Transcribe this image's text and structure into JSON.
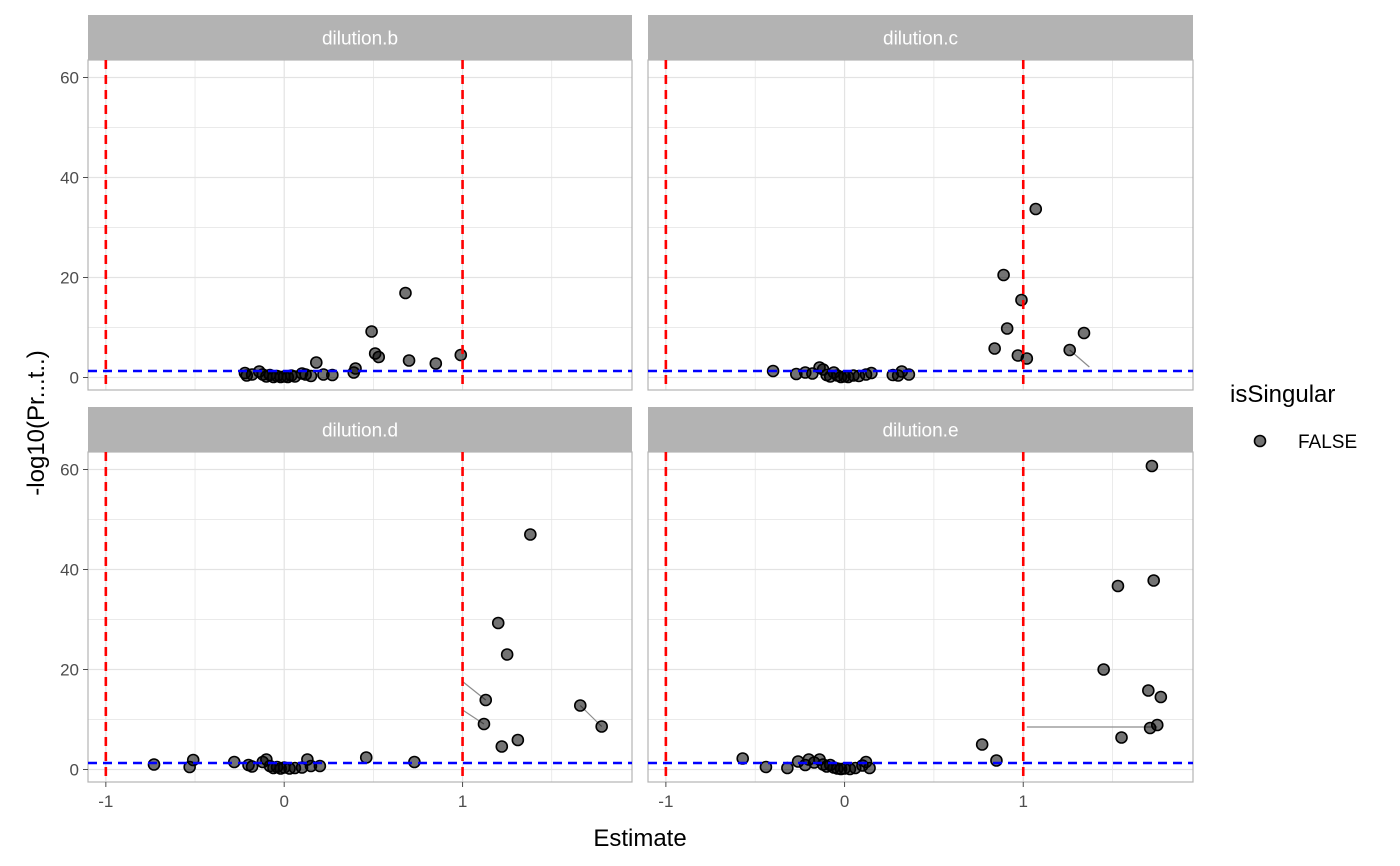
{
  "chart_data": {
    "type": "scatter",
    "xlabel": "Estimate",
    "ylabel": "-log10(Pr...t..)",
    "xlim": [
      -1.1,
      1.95
    ],
    "ylim": [
      -2.5,
      63.5
    ],
    "x_ticks": [
      -1,
      0,
      1
    ],
    "y_ticks": [
      0,
      20,
      40,
      60
    ],
    "grid": true,
    "vlines": [
      -1,
      1
    ],
    "hline": 1.3,
    "colors": {
      "point": "#000000",
      "vline": "#ff0000",
      "hline": "#0000ff",
      "strip": "#b3b3b3",
      "grid": "#e3e3e3",
      "connector": "#8c8c8c"
    },
    "legend": {
      "title": "isSingular",
      "entries": [
        "FALSE"
      ],
      "position": "right"
    },
    "panels": [
      {
        "title": "dilution.b",
        "points": [
          [
            -0.22,
            0.9
          ],
          [
            -0.21,
            0.4
          ],
          [
            -0.18,
            0.6
          ],
          [
            -0.14,
            1.2
          ],
          [
            -0.12,
            0.6
          ],
          [
            -0.1,
            0.2
          ],
          [
            -0.08,
            0.5
          ],
          [
            -0.06,
            0.1
          ],
          [
            -0.04,
            0.3
          ],
          [
            -0.02,
            0.1
          ],
          [
            0.0,
            0.2
          ],
          [
            0.02,
            0.1
          ],
          [
            0.04,
            0.4
          ],
          [
            0.06,
            0.2
          ],
          [
            0.1,
            0.8
          ],
          [
            0.12,
            0.6
          ],
          [
            0.15,
            0.3
          ],
          [
            0.18,
            3.0
          ],
          [
            0.22,
            0.6
          ],
          [
            0.27,
            0.5
          ],
          [
            0.39,
            1.0
          ],
          [
            0.4,
            1.8
          ],
          [
            0.49,
            9.2
          ],
          [
            0.51,
            4.8
          ],
          [
            0.53,
            4.1
          ],
          [
            0.68,
            16.9
          ],
          [
            0.7,
            3.4
          ],
          [
            0.85,
            2.8
          ],
          [
            0.99,
            4.5
          ]
        ],
        "connectors": []
      },
      {
        "title": "dilution.c",
        "points": [
          [
            -0.4,
            1.3
          ],
          [
            -0.27,
            0.7
          ],
          [
            -0.22,
            1.0
          ],
          [
            -0.18,
            0.8
          ],
          [
            -0.14,
            2.0
          ],
          [
            -0.12,
            1.6
          ],
          [
            -0.1,
            0.5
          ],
          [
            -0.08,
            0.2
          ],
          [
            -0.06,
            1.0
          ],
          [
            -0.04,
            0.4
          ],
          [
            -0.02,
            0.1
          ],
          [
            0.0,
            0.2
          ],
          [
            0.02,
            0.1
          ],
          [
            0.05,
            0.4
          ],
          [
            0.08,
            0.3
          ],
          [
            0.12,
            0.6
          ],
          [
            0.15,
            0.9
          ],
          [
            0.27,
            0.5
          ],
          [
            0.3,
            0.4
          ],
          [
            0.32,
            1.2
          ],
          [
            0.36,
            0.6
          ],
          [
            0.84,
            5.8
          ],
          [
            0.89,
            20.5
          ],
          [
            0.91,
            9.8
          ],
          [
            0.97,
            4.4
          ],
          [
            0.99,
            15.5
          ],
          [
            1.02,
            3.8
          ],
          [
            1.07,
            33.7
          ],
          [
            1.26,
            5.5
          ],
          [
            1.34,
            8.9
          ]
        ],
        "connectors": [
          [
            1.26,
            5.5,
            1.37,
            2.1
          ]
        ]
      },
      {
        "title": "dilution.d",
        "points": [
          [
            -0.73,
            1.0
          ],
          [
            -0.53,
            0.5
          ],
          [
            -0.51,
            1.9
          ],
          [
            -0.28,
            1.5
          ],
          [
            -0.2,
            0.9
          ],
          [
            -0.18,
            0.6
          ],
          [
            -0.12,
            1.5
          ],
          [
            -0.1,
            2.0
          ],
          [
            -0.08,
            0.7
          ],
          [
            -0.06,
            0.3
          ],
          [
            -0.04,
            0.5
          ],
          [
            -0.02,
            0.2
          ],
          [
            0.0,
            0.4
          ],
          [
            0.03,
            0.2
          ],
          [
            0.06,
            0.3
          ],
          [
            0.1,
            0.4
          ],
          [
            0.13,
            2.0
          ],
          [
            0.15,
            0.7
          ],
          [
            0.2,
            0.7
          ],
          [
            0.46,
            2.4
          ],
          [
            0.73,
            1.5
          ],
          [
            1.12,
            9.1
          ],
          [
            1.13,
            13.9
          ],
          [
            1.2,
            29.3
          ],
          [
            1.22,
            4.6
          ],
          [
            1.25,
            23.0
          ],
          [
            1.31,
            5.9
          ],
          [
            1.38,
            47.0
          ],
          [
            1.66,
            12.8
          ],
          [
            1.78,
            8.6
          ]
        ],
        "connectors": [
          [
            1.0,
            17.6,
            1.13,
            13.9
          ],
          [
            1.0,
            11.9,
            1.12,
            9.1
          ],
          [
            1.66,
            12.8,
            1.78,
            8.6
          ]
        ]
      },
      {
        "title": "dilution.e",
        "points": [
          [
            -0.57,
            2.2
          ],
          [
            -0.44,
            0.5
          ],
          [
            -0.32,
            0.3
          ],
          [
            -0.26,
            1.6
          ],
          [
            -0.22,
            0.9
          ],
          [
            -0.2,
            2.0
          ],
          [
            -0.17,
            1.4
          ],
          [
            -0.14,
            2.0
          ],
          [
            -0.12,
            1.0
          ],
          [
            -0.1,
            0.6
          ],
          [
            -0.08,
            0.9
          ],
          [
            -0.06,
            0.4
          ],
          [
            -0.04,
            0.2
          ],
          [
            -0.02,
            0.1
          ],
          [
            0.0,
            0.2
          ],
          [
            0.03,
            0.1
          ],
          [
            0.06,
            0.3
          ],
          [
            0.1,
            0.8
          ],
          [
            0.12,
            1.5
          ],
          [
            0.14,
            0.3
          ],
          [
            0.77,
            5.0
          ],
          [
            0.85,
            1.8
          ],
          [
            1.45,
            20.0
          ],
          [
            1.53,
            36.7
          ],
          [
            1.55,
            6.4
          ],
          [
            1.7,
            15.8
          ],
          [
            1.71,
            8.3
          ],
          [
            1.72,
            60.7
          ],
          [
            1.73,
            37.8
          ],
          [
            1.75,
            8.9
          ],
          [
            1.77,
            14.5
          ]
        ],
        "connectors": [
          [
            1.02,
            8.5,
            1.75,
            8.5
          ]
        ]
      }
    ]
  }
}
